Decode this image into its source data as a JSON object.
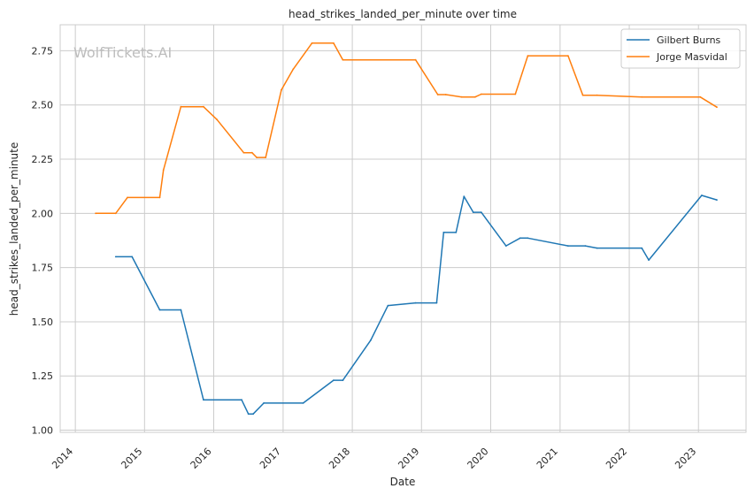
{
  "chart_data": {
    "type": "line",
    "title": "head_strikes_landed_per_minute over time",
    "xlabel": "Date",
    "ylabel": "head_strikes_landed_per_minute",
    "watermark": "WolfTickets.AI",
    "x_ticks": [
      "2014",
      "2015",
      "2016",
      "2017",
      "2018",
      "2019",
      "2020",
      "2021",
      "2022",
      "2023"
    ],
    "y_ticks": [
      "1.00",
      "1.25",
      "1.50",
      "1.75",
      "2.00",
      "2.25",
      "2.50",
      "2.75"
    ],
    "xlim": [
      "2013-10-13",
      "2023-09-09"
    ],
    "ylim": [
      0.99,
      2.87
    ],
    "grid": true,
    "legend_position": "top-right",
    "series": [
      {
        "name": "Gilbert Burns",
        "color": "#1f77b4",
        "points": [
          [
            "2014-08-02",
            1.8
          ],
          [
            "2014-10-27",
            1.8
          ],
          [
            "2015-03-22",
            1.555
          ],
          [
            "2015-07-12",
            1.555
          ],
          [
            "2015-11-08",
            1.14
          ],
          [
            "2016-05-27",
            1.14
          ],
          [
            "2016-07-02",
            1.075
          ],
          [
            "2016-07-27",
            1.075
          ],
          [
            "2016-09-21",
            1.125
          ],
          [
            "2017-04-17",
            1.125
          ],
          [
            "2017-09-24",
            1.23
          ],
          [
            "2017-11-12",
            1.23
          ],
          [
            "2018-04-08",
            1.415
          ],
          [
            "2018-07-08",
            1.575
          ],
          [
            "2018-12-01",
            1.587
          ],
          [
            "2019-03-22",
            1.587
          ],
          [
            "2019-04-28",
            1.912
          ],
          [
            "2019-07-02",
            1.912
          ],
          [
            "2019-08-13",
            2.078
          ],
          [
            "2019-10-01",
            2.005
          ],
          [
            "2019-11-12",
            2.005
          ],
          [
            "2020-03-22",
            1.85
          ],
          [
            "2020-06-04",
            1.886
          ],
          [
            "2020-07-15",
            1.886
          ],
          [
            "2021-02-12",
            1.85
          ],
          [
            "2021-05-14",
            1.85
          ],
          [
            "2021-07-15",
            1.84
          ],
          [
            "2022-03-08",
            1.84
          ],
          [
            "2022-04-14",
            1.785
          ],
          [
            "2023-01-18",
            2.083
          ],
          [
            "2023-04-08",
            2.062
          ]
        ]
      },
      {
        "name": "Jorge Masvidal",
        "color": "#ff7f0e",
        "points": [
          [
            "2014-04-18",
            2.0
          ],
          [
            "2014-08-02",
            2.0
          ],
          [
            "2014-10-03",
            2.073
          ],
          [
            "2015-03-22",
            2.073
          ],
          [
            "2015-04-11",
            2.2
          ],
          [
            "2015-07-12",
            2.492
          ],
          [
            "2015-11-08",
            2.492
          ],
          [
            "2016-01-18",
            2.433
          ],
          [
            "2016-06-07",
            2.28
          ],
          [
            "2016-07-21",
            2.28
          ],
          [
            "2016-08-15",
            2.258
          ],
          [
            "2016-10-01",
            2.258
          ],
          [
            "2016-12-23",
            2.57
          ],
          [
            "2017-02-23",
            2.665
          ],
          [
            "2017-06-02",
            2.785
          ],
          [
            "2017-09-24",
            2.785
          ],
          [
            "2017-11-12",
            2.708
          ],
          [
            "2018-12-01",
            2.708
          ],
          [
            "2019-03-28",
            2.548
          ],
          [
            "2019-05-09",
            2.548
          ],
          [
            "2019-08-01",
            2.537
          ],
          [
            "2019-10-11",
            2.537
          ],
          [
            "2019-11-12",
            2.55
          ],
          [
            "2020-05-10",
            2.55
          ],
          [
            "2020-07-15",
            2.727
          ],
          [
            "2021-02-12",
            2.727
          ],
          [
            "2021-05-01",
            2.545
          ],
          [
            "2021-07-15",
            2.545
          ],
          [
            "2022-03-08",
            2.537
          ],
          [
            "2023-01-10",
            2.537
          ],
          [
            "2023-04-08",
            2.49
          ]
        ]
      }
    ]
  }
}
